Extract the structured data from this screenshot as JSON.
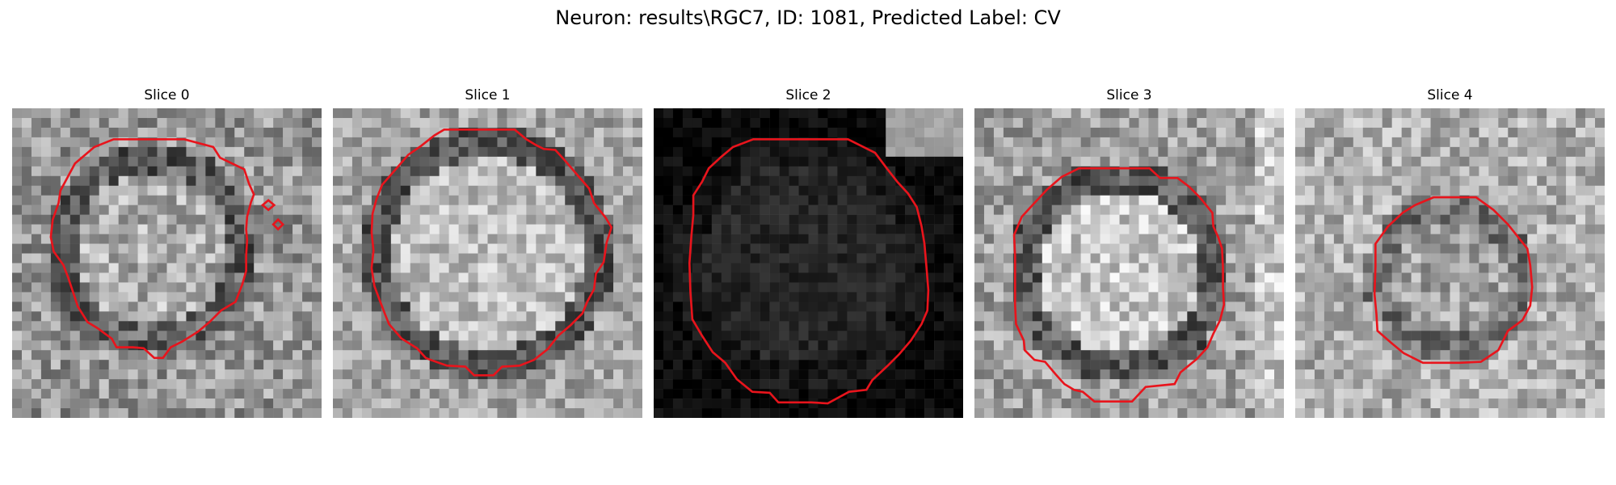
{
  "figure": {
    "suptitle": "Neuron: results\\RGC7, ID: 1081, Predicted Label: CV",
    "contour_color": "#e8141c",
    "colormap": "gray"
  },
  "panels": [
    {
      "title": "Slice 0"
    },
    {
      "title": "Slice 1"
    },
    {
      "title": "Slice 2"
    },
    {
      "title": "Slice 3"
    },
    {
      "title": "Slice 4"
    }
  ]
}
